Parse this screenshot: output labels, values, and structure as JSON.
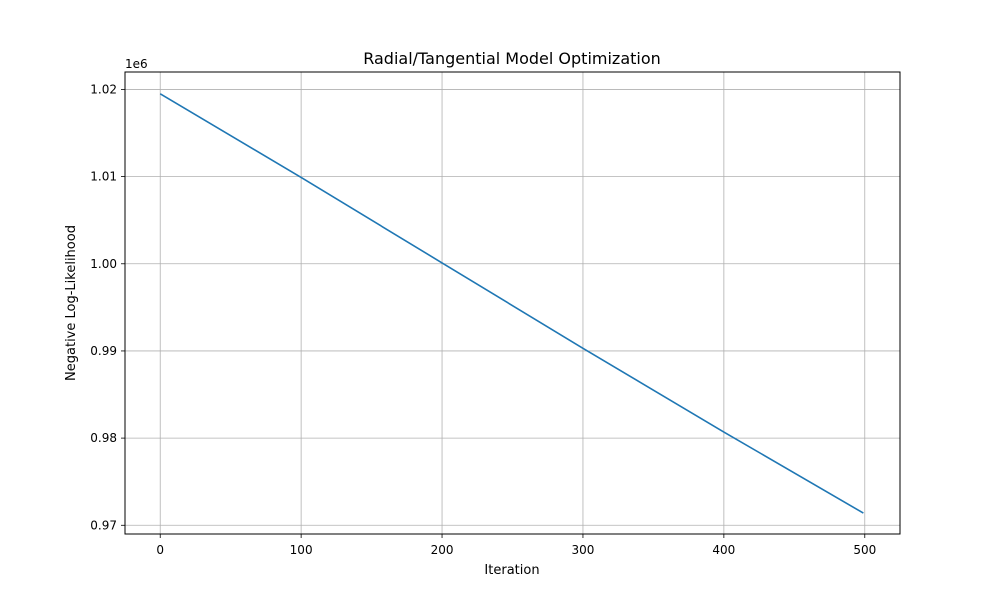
{
  "chart_data": {
    "type": "line",
    "title": "Radial/Tangential Model Optimization",
    "xlabel": "Iteration",
    "ylabel": "Negative Log-Likelihood",
    "y_offset_label": "1e6",
    "xlim": [
      -25,
      525
    ],
    "ylim": [
      969000,
      1022000
    ],
    "x_ticks": [
      0,
      100,
      200,
      300,
      400,
      500
    ],
    "x_tick_labels": [
      "0",
      "100",
      "200",
      "300",
      "400",
      "500"
    ],
    "y_ticks": [
      970000,
      980000,
      990000,
      1000000,
      1010000,
      1020000
    ],
    "y_tick_labels": [
      "0.97",
      "0.98",
      "0.99",
      "1.00",
      "1.01",
      "1.02"
    ],
    "grid": true,
    "series": [
      {
        "color": "#1f77b4",
        "x": [
          0,
          100,
          200,
          300,
          400,
          499
        ],
        "y": [
          1019500,
          1009900,
          1000100,
          990300,
          980700,
          971400
        ]
      }
    ]
  }
}
